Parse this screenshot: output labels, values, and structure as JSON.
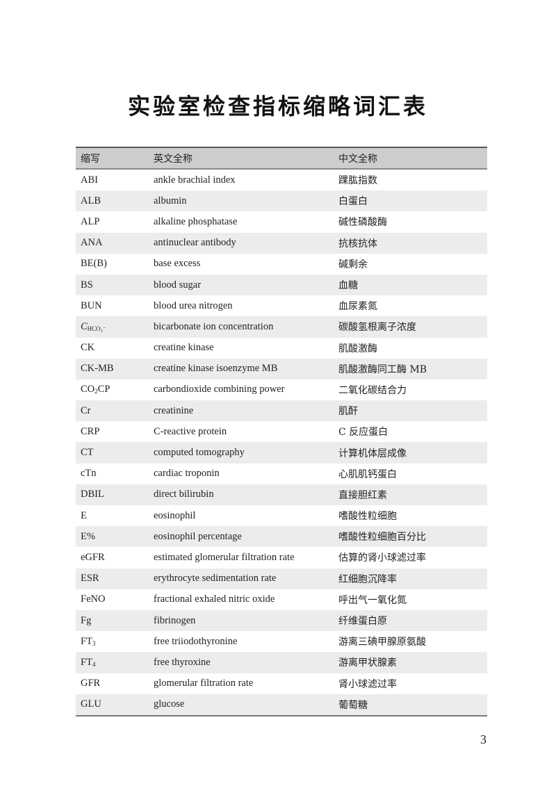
{
  "title": "实验室检查指标缩略词汇表",
  "headers": {
    "abbr": "缩写",
    "en": "英文全称",
    "zh": "中文全称"
  },
  "rows": [
    {
      "abbr": [
        {
          "t": "ABI"
        }
      ],
      "en": "ankle brachial index",
      "zh": "踝肱指数"
    },
    {
      "abbr": [
        {
          "t": "ALB"
        }
      ],
      "en": "albumin",
      "zh": "白蛋白"
    },
    {
      "abbr": [
        {
          "t": "ALP"
        }
      ],
      "en": "alkaline phosphatase",
      "zh": "碱性磷酸酶"
    },
    {
      "abbr": [
        {
          "t": "ANA"
        }
      ],
      "en": "antinuclear antibody",
      "zh": "抗核抗体"
    },
    {
      "abbr": [
        {
          "t": "BE(B)"
        }
      ],
      "en": "base excess",
      "zh": "碱剩余"
    },
    {
      "abbr": [
        {
          "t": "BS"
        }
      ],
      "en": "blood sugar",
      "zh": "血糖"
    },
    {
      "abbr": [
        {
          "t": "BUN"
        }
      ],
      "en": "blood urea nitrogen",
      "zh": "血尿素氮"
    },
    {
      "abbr": [
        {
          "t": "C",
          "style": "it"
        },
        {
          "t": "HCO₃⁻",
          "style": "sub"
        }
      ],
      "en": "bicarbonate ion concentration",
      "zh": "碳酸氢根离子浓度"
    },
    {
      "abbr": [
        {
          "t": "CK"
        }
      ],
      "en": "creatine kinase",
      "zh": "肌酸激酶"
    },
    {
      "abbr": [
        {
          "t": "CK-MB"
        }
      ],
      "en": "creatine kinase isoenzyme MB",
      "zh": "肌酸激酶同工酶 MB"
    },
    {
      "abbr": [
        {
          "t": "CO"
        },
        {
          "t": "2",
          "style": "sub"
        },
        {
          "t": "CP"
        }
      ],
      "en": "carbondioxide combining power",
      "zh": "二氧化碳结合力"
    },
    {
      "abbr": [
        {
          "t": "Cr"
        }
      ],
      "en": "creatinine",
      "zh": "肌酐"
    },
    {
      "abbr": [
        {
          "t": "CRP"
        }
      ],
      "en": "C-reactive protein",
      "zh": "C 反应蛋白"
    },
    {
      "abbr": [
        {
          "t": "CT"
        }
      ],
      "en": "computed tomography",
      "zh": "计算机体层成像"
    },
    {
      "abbr": [
        {
          "t": "cTn"
        }
      ],
      "en": "cardiac troponin",
      "zh": "心肌肌钙蛋白"
    },
    {
      "abbr": [
        {
          "t": "DBIL"
        }
      ],
      "en": "direct bilirubin",
      "zh": "直接胆红素"
    },
    {
      "abbr": [
        {
          "t": "E"
        }
      ],
      "en": "eosinophil",
      "zh": "嗜酸性粒细胞"
    },
    {
      "abbr": [
        {
          "t": "E%"
        }
      ],
      "en": "eosinophil percentage",
      "zh": "嗜酸性粒细胞百分比"
    },
    {
      "abbr": [
        {
          "t": "eGFR"
        }
      ],
      "en": "estimated glomerular filtration rate",
      "zh": "估算的肾小球滤过率"
    },
    {
      "abbr": [
        {
          "t": "ESR"
        }
      ],
      "en": "erythrocyte sedimentation rate",
      "zh": "红细胞沉降率"
    },
    {
      "abbr": [
        {
          "t": "FeNO"
        }
      ],
      "en": "fractional exhaled nitric oxide",
      "zh": "呼出气一氧化氮"
    },
    {
      "abbr": [
        {
          "t": "Fg"
        }
      ],
      "en": "fibrinogen",
      "zh": "纤维蛋白原"
    },
    {
      "abbr": [
        {
          "t": "FT"
        },
        {
          "t": "3",
          "style": "sub"
        }
      ],
      "en": "free triiodothyronine",
      "zh": "游离三碘甲腺原氨酸"
    },
    {
      "abbr": [
        {
          "t": "FT"
        },
        {
          "t": "4",
          "style": "sub"
        }
      ],
      "en": "free thyroxine",
      "zh": "游离甲状腺素"
    },
    {
      "abbr": [
        {
          "t": "GFR"
        }
      ],
      "en": "glomerular filtration rate",
      "zh": "肾小球滤过率"
    },
    {
      "abbr": [
        {
          "t": "GLU"
        }
      ],
      "en": "glucose",
      "zh": "葡萄糖"
    }
  ],
  "page_number": "3"
}
